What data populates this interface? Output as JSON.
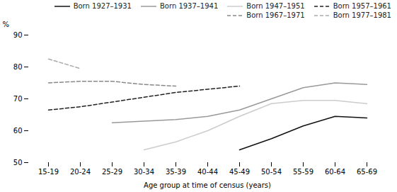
{
  "chart_data": {
    "type": "line",
    "categories": [
      "15-19",
      "20-24",
      "25-29",
      "30-34",
      "35-39",
      "40-44",
      "45-49",
      "50-54",
      "55-59",
      "60-64",
      "65-69"
    ],
    "series": [
      {
        "name": "Born 1927–1931",
        "color": "#111111",
        "line_style": "solid",
        "values": [
          null,
          null,
          null,
          null,
          null,
          null,
          54.0,
          57.5,
          61.5,
          64.5,
          64.0
        ]
      },
      {
        "name": "Born 1937–1941",
        "color": "#999999",
        "line_style": "solid",
        "values": [
          null,
          null,
          62.5,
          63.0,
          63.5,
          64.5,
          66.5,
          70.0,
          73.5,
          75.0,
          74.5
        ]
      },
      {
        "name": "Born 1947–1951",
        "color": "#cccccc",
        "line_style": "solid",
        "values": [
          null,
          null,
          null,
          54.0,
          56.5,
          60.0,
          64.5,
          68.5,
          69.5,
          69.5,
          68.5
        ]
      },
      {
        "name": "Born 1957–1961",
        "color": "#222222",
        "line_style": "dashed",
        "values": [
          66.5,
          67.5,
          69.0,
          70.5,
          72.0,
          73.0,
          74.0,
          null,
          null,
          null,
          null
        ]
      },
      {
        "name": "Born 1967–1971",
        "color": "#888888",
        "line_style": "dashed",
        "values": [
          75.0,
          75.5,
          75.5,
          74.5,
          74.0,
          null,
          null,
          null,
          null,
          null,
          null
        ]
      },
      {
        "name": "Born 1977–1981",
        "color": "#aaaaaa",
        "line_style": "dashed",
        "values": [
          82.5,
          79.5,
          null,
          null,
          null,
          null,
          null,
          null,
          null,
          null,
          null
        ]
      }
    ],
    "xlabel": "Age group at time of census (years)",
    "ylabel": "%",
    "ylim": [
      50,
      90
    ],
    "yticks": [
      50,
      60,
      70,
      80,
      90
    ],
    "legend": "upper right",
    "grid": false
  }
}
